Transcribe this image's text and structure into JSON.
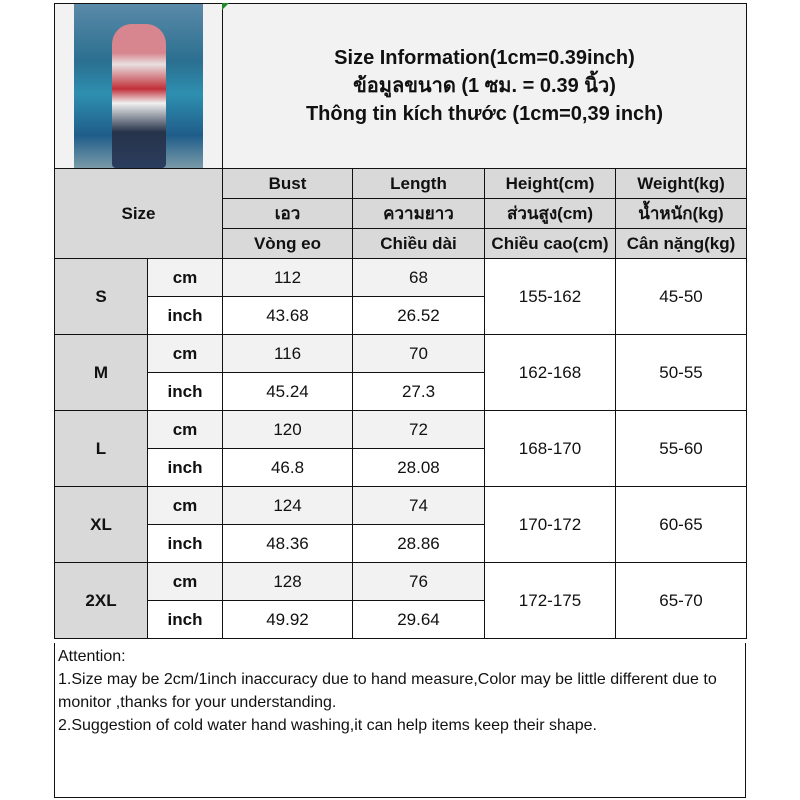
{
  "header": {
    "photo_alt": "model wearing red and white striped 05 top",
    "titles": [
      "Size Information(1cm=0.39inch)",
      "ข้อมูลขนาด (1 ซม. = 0.39 นิ้ว)",
      "Thông tin kích thước (1cm=0,39 inch)"
    ]
  },
  "table": {
    "size_label": "Size",
    "columns": [
      {
        "en": "Bust",
        "th": "เอว",
        "vi": "Vòng eo"
      },
      {
        "en": "Length",
        "th": "ความยาว",
        "vi": "Chiều dài"
      },
      {
        "en": "Height(cm)",
        "th": "ส่วนสูง(cm)",
        "vi": "Chiều cao(cm)"
      },
      {
        "en": "Weight(kg)",
        "th": "น้ำหนัก(kg)",
        "vi": "Cân nặng(kg)"
      }
    ],
    "unit_cm": "cm",
    "unit_inch": "inch",
    "rows": [
      {
        "size": "S",
        "bust_cm": "112",
        "length_cm": "68",
        "bust_in": "43.68",
        "length_in": "26.52",
        "height": "155-162",
        "weight": "45-50"
      },
      {
        "size": "M",
        "bust_cm": "116",
        "length_cm": "70",
        "bust_in": "45.24",
        "length_in": "27.3",
        "height": "162-168",
        "weight": "50-55"
      },
      {
        "size": "L",
        "bust_cm": "120",
        "length_cm": "72",
        "bust_in": "46.8",
        "length_in": "28.08",
        "height": "168-170",
        "weight": "55-60"
      },
      {
        "size": "XL",
        "bust_cm": "124",
        "length_cm": "74",
        "bust_in": "48.36",
        "length_in": "28.86",
        "height": "170-172",
        "weight": "60-65"
      },
      {
        "size": "2XL",
        "bust_cm": "128",
        "length_cm": "76",
        "bust_in": "49.92",
        "length_in": "29.64",
        "height": "172-175",
        "weight": "65-70"
      }
    ]
  },
  "attention": {
    "title": "Attention:",
    "lines": [
      "1.Size may be 2cm/1inch inaccuracy due to hand measure,Color may be little different due to monitor ,thanks for your understanding.",
      "2.Suggestion of cold water hand washing,it can help items keep their shape."
    ]
  }
}
